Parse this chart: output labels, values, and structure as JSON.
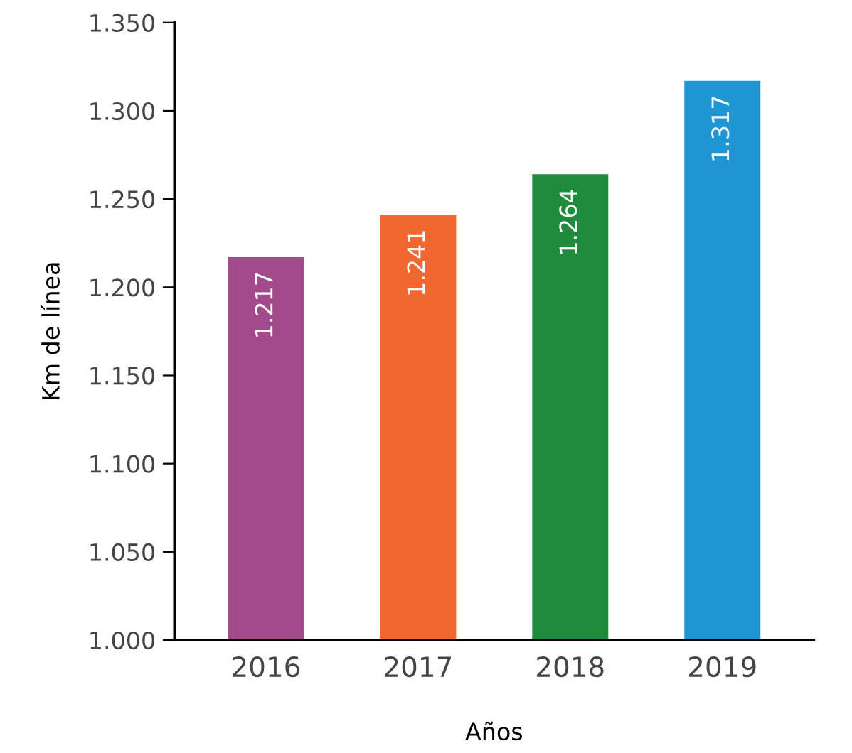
{
  "chart_data": {
    "type": "bar",
    "xlabel": "Años",
    "ylabel": "Km de línea",
    "categories": [
      "2016",
      "2017",
      "2018",
      "2019"
    ],
    "values": [
      1217,
      1241,
      1264,
      1317
    ],
    "value_labels": [
      "1.217",
      "1.241",
      "1.264",
      "1.317"
    ],
    "colors": [
      "#a34b8a",
      "#f0672f",
      "#1f8b3d",
      "#1f96d3"
    ],
    "ylim": [
      1000,
      1350
    ],
    "yticks": [
      {
        "value": 1000,
        "label": "1.000"
      },
      {
        "value": 1050,
        "label": "1.050"
      },
      {
        "value": 1100,
        "label": "1.100"
      },
      {
        "value": 1150,
        "label": "1.150"
      },
      {
        "value": 1200,
        "label": "1.200"
      },
      {
        "value": 1250,
        "label": "1.250"
      },
      {
        "value": 1300,
        "label": "1.300"
      },
      {
        "value": 1350,
        "label": "1.350"
      }
    ],
    "grid": false
  }
}
